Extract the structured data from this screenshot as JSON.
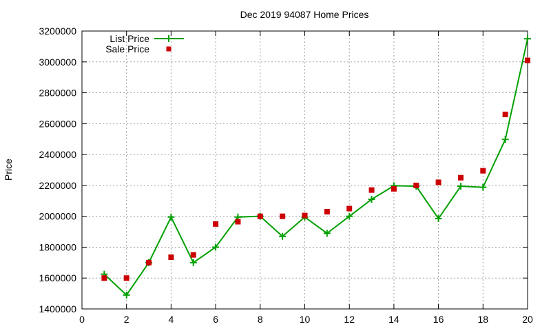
{
  "chart_data": {
    "type": "line",
    "title": "Dec 2019 94087 Home Prices",
    "xlabel": "",
    "ylabel": "Price",
    "xlim": [
      0,
      20
    ],
    "ylim": [
      1400000,
      3200000
    ],
    "x_ticks": [
      0,
      2,
      4,
      6,
      8,
      10,
      12,
      14,
      16,
      18,
      20
    ],
    "y_ticks": [
      1400000,
      1600000,
      1800000,
      2000000,
      2200000,
      2400000,
      2600000,
      2800000,
      3000000,
      3200000
    ],
    "x_tick_labels": [
      "0",
      "2",
      "4",
      "6",
      "8",
      "10",
      "12",
      "14",
      "16",
      "18",
      "20"
    ],
    "y_tick_labels": [
      "1400000",
      "1600000",
      "1800000",
      "2000000",
      "2200000",
      "2400000",
      "2600000",
      "2800000",
      "3000000",
      "3200000"
    ],
    "grid": true,
    "legend_position": "top-left",
    "x": [
      1,
      2,
      3,
      4,
      5,
      6,
      7,
      8,
      9,
      10,
      11,
      12,
      13,
      14,
      15,
      16,
      17,
      18,
      19,
      20
    ],
    "series": [
      {
        "name": "List Price",
        "style": "line-with-plus-markers",
        "color": "#00a000",
        "values": [
          1625000,
          1490000,
          1700000,
          1995000,
          1700000,
          1800000,
          1995000,
          2000000,
          1870000,
          1995000,
          1890000,
          2000000,
          2110000,
          2198000,
          2195000,
          1985000,
          2195000,
          2188000,
          2498000,
          3150000
        ]
      },
      {
        "name": "Sale Price",
        "style": "square-markers",
        "color": "#cc0000",
        "values": [
          1600000,
          1600000,
          1700000,
          1735000,
          1750000,
          1950000,
          1965000,
          2000000,
          2000000,
          2005000,
          2030000,
          2050000,
          2170000,
          2178000,
          2200000,
          2220000,
          2250000,
          2295000,
          2660000,
          3010000
        ]
      }
    ]
  }
}
